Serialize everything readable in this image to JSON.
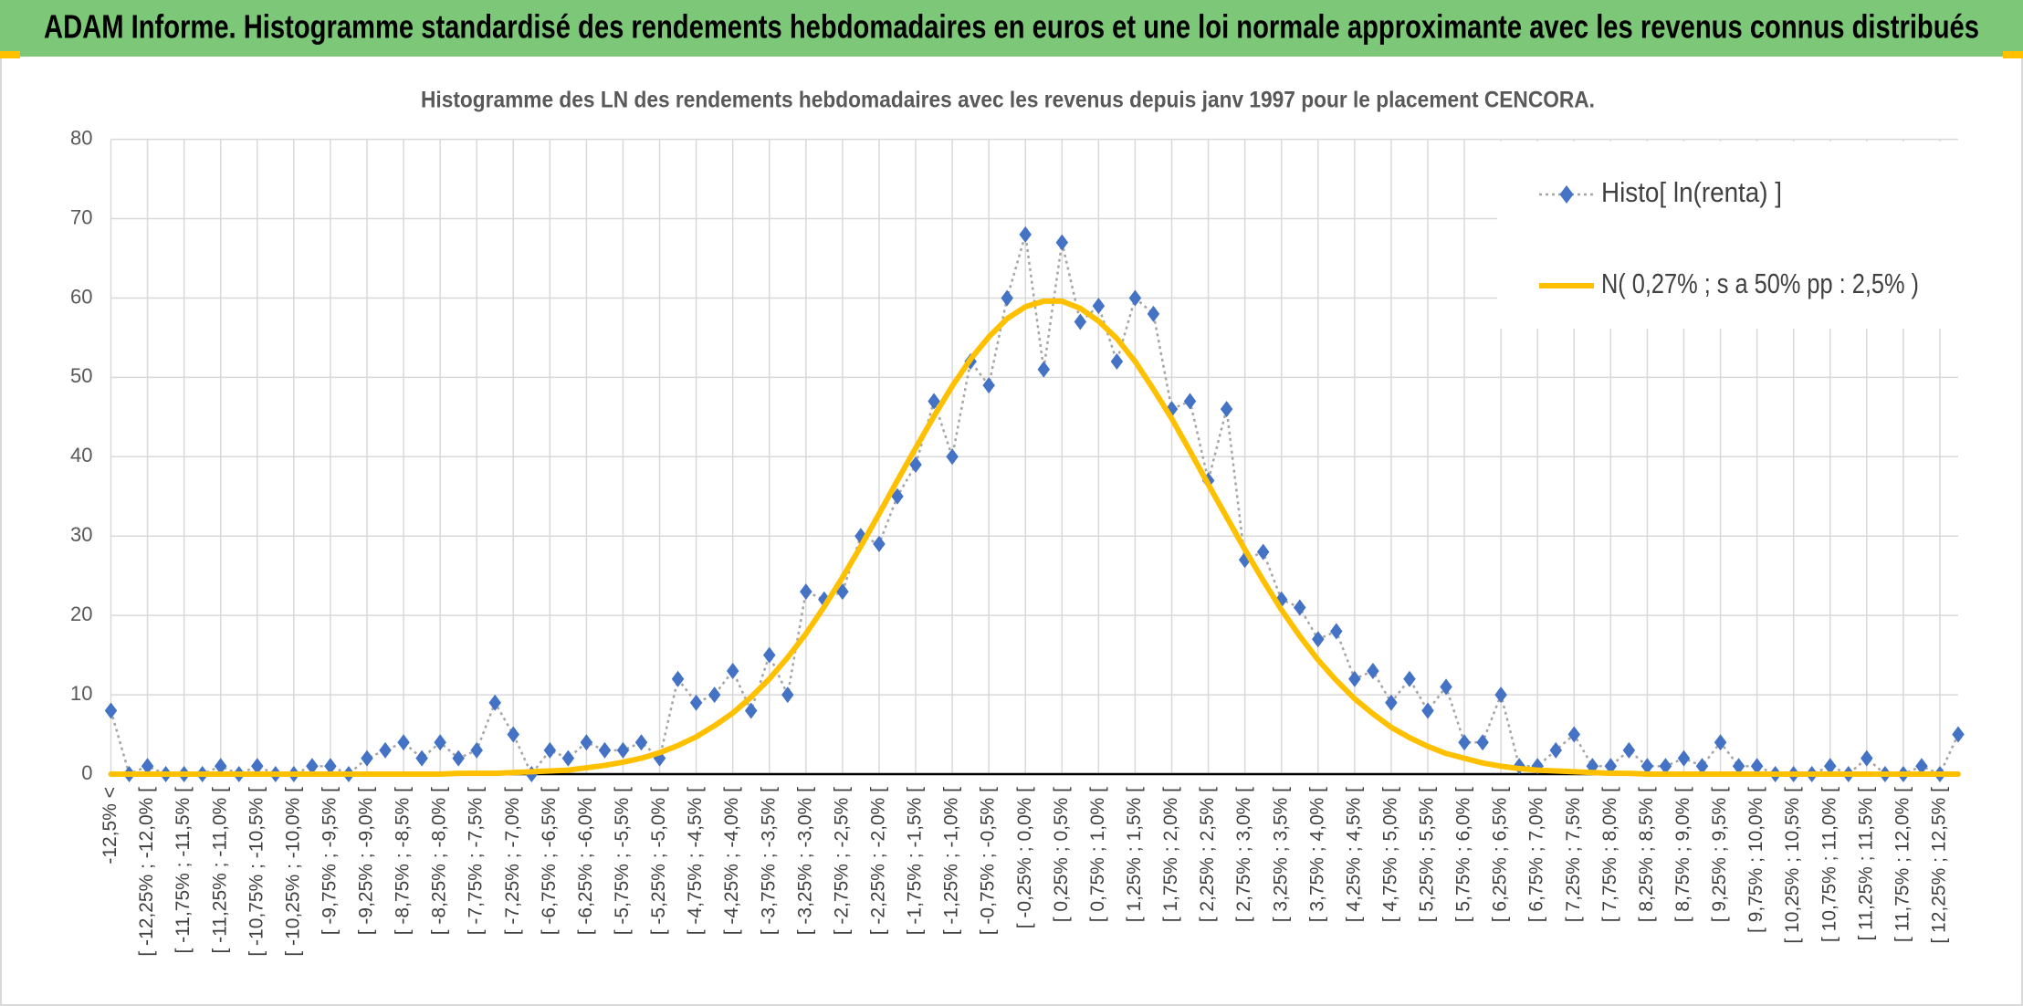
{
  "header": {
    "title": "ADAM Informe. Histogramme standardisé des rendements hebdomadaires en euros et une loi normale approximante avec les revenus connus distribués"
  },
  "chart_data": {
    "type": "line",
    "title": "Histogramme des LN des rendements hebdomadaires avec les revenus depuis janv 1997 pour le placement CENCORA.",
    "categories": [
      "-12,5% <",
      null,
      "[ -12,25% ; -12,0% [",
      null,
      "[ -11,75% ; -11,5% [",
      null,
      "[ -11,25% ; -11,0% [",
      null,
      "[ -10,75% ; -10,5% [",
      null,
      "[ -10,25% ; -10,0% [",
      null,
      "[ -9,75% ; -9,5% [",
      null,
      "[ -9,25% ; -9,0% [",
      null,
      "[ -8,75% ; -8,5% [",
      null,
      "[ -8,25% ; -8,0% [",
      null,
      "[ -7,75% ; -7,5% [",
      null,
      "[ -7,25% ; -7,0% [",
      null,
      "[ -6,75% ; -6,5% [",
      null,
      "[ -6,25% ; -6,0% [",
      null,
      "[ -5,75% ; -5,5% [",
      null,
      "[ -5,25% ; -5,0% [",
      null,
      "[ -4,75% ; -4,5% [",
      null,
      "[ -4,25% ; -4,0% [",
      null,
      "[ -3,75% ; -3,5% [",
      null,
      "[ -3,25% ; -3,0% [",
      null,
      "[ -2,75% ; -2,5% [",
      null,
      "[ -2,25% ; -2,0% [",
      null,
      "[ -1,75% ; -1,5% [",
      null,
      "[ -1,25% ; -1,0% [",
      null,
      "[ -0,75% ; -0,5% [",
      null,
      "[ -0,25% ; 0,0% [",
      null,
      "[ 0,25% ; 0,5% [",
      null,
      "[ 0,75% ; 1,0% [",
      null,
      "[ 1,25% ; 1,5% [",
      null,
      "[ 1,75% ; 2,0% [",
      null,
      "[ 2,25% ; 2,5% [",
      null,
      "[ 2,75% ; 3,0% [",
      null,
      "[ 3,25% ; 3,5% [",
      null,
      "[ 3,75% ; 4,0% [",
      null,
      "[ 4,25% ; 4,5% [",
      null,
      "[ 4,75% ; 5,0% [",
      null,
      "[ 5,25% ; 5,5% [",
      null,
      "[ 5,75% ; 6,0% [",
      null,
      "[ 6,25% ; 6,5% [",
      null,
      "[ 6,75% ; 7,0% [",
      null,
      "[ 7,25% ; 7,5% [",
      null,
      "[ 7,75% ; 8,0% [",
      null,
      "[ 8,25% ; 8,5% [",
      null,
      "[ 8,75% ; 9,0% [",
      null,
      "[ 9,25% ; 9,5% [",
      null,
      "[ 9,75% ; 10,0% [",
      null,
      "[ 10,25% ; 10,5% [",
      null,
      "[ 10,75% ; 11,0% [",
      null,
      "[ 11,25% ; 11,5% [",
      null,
      "[ 11,75% ; 12,0% [",
      null,
      "[ 12,25% ; 12,5% [",
      null
    ],
    "series": [
      {
        "name": "Histo[ ln(renta) ]",
        "color": "#4472c4",
        "line_color": "#a5a5a5",
        "marker": "diamond",
        "values": [
          8,
          0,
          1,
          0,
          0,
          0,
          1,
          0,
          1,
          0,
          0,
          1,
          1,
          0,
          2,
          3,
          4,
          2,
          4,
          2,
          3,
          9,
          5,
          0,
          3,
          2,
          4,
          3,
          3,
          4,
          2,
          12,
          9,
          10,
          13,
          8,
          15,
          10,
          23,
          22,
          23,
          30,
          29,
          35,
          39,
          47,
          40,
          52,
          49,
          60,
          68,
          51,
          67,
          57,
          59,
          52,
          60,
          58,
          46,
          47,
          37,
          46,
          27,
          28,
          22,
          21,
          17,
          18,
          12,
          13,
          9,
          12,
          8,
          11,
          4,
          4,
          10,
          1,
          1,
          3,
          5,
          1,
          1,
          3,
          1,
          1,
          2,
          1,
          4,
          1,
          1,
          0,
          0,
          0,
          1,
          0,
          2,
          0,
          0,
          1,
          0,
          5
        ]
      },
      {
        "name": "N( 0,27% ; s a 50% pp : 2,5% )",
        "color": "#ffc000",
        "values": [
          0,
          0,
          0,
          0,
          0,
          0,
          0,
          0,
          0,
          0,
          0,
          0,
          0,
          0,
          0,
          0,
          0,
          0,
          0,
          0.1,
          0.1,
          0.1,
          0.2,
          0.3,
          0.4,
          0.5,
          0.8,
          1.1,
          1.5,
          2.0,
          2.7,
          3.6,
          4.7,
          6.1,
          7.7,
          9.7,
          12.0,
          14.7,
          17.7,
          21.1,
          24.8,
          28.7,
          32.8,
          37.0,
          41.1,
          45.1,
          48.9,
          52.3,
          55.1,
          57.4,
          58.9,
          59.6,
          59.6,
          58.7,
          57.1,
          54.9,
          52.0,
          48.5,
          44.8,
          40.7,
          36.5,
          32.4,
          28.3,
          24.4,
          20.7,
          17.4,
          14.4,
          11.8,
          9.5,
          7.6,
          5.9,
          4.6,
          3.5,
          2.6,
          2.0,
          1.4,
          1.0,
          0.7,
          0.5,
          0.4,
          0.3,
          0.2,
          0.1,
          0.1,
          0,
          0,
          0,
          0,
          0,
          0,
          0,
          0,
          0,
          0,
          0,
          0,
          0,
          0,
          0,
          0,
          0,
          0
        ]
      }
    ],
    "ylim": [
      0,
      80
    ],
    "yticks": [
      0,
      10,
      20,
      30,
      40,
      50,
      60,
      70,
      80
    ],
    "grid": true,
    "legend": "top-right"
  }
}
